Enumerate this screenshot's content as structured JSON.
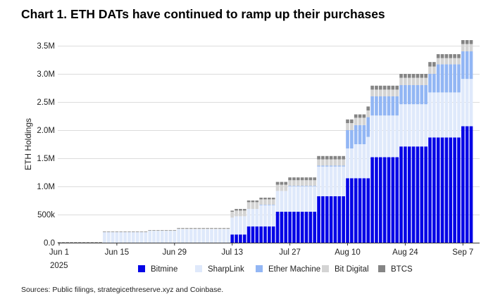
{
  "chart_data": {
    "type": "bar",
    "stacked": true,
    "title": "Chart 1. ETH DATs have continued to ramp up their purchases",
    "xlabel": "",
    "ylabel": "ETH Holdings",
    "ylim": [
      0,
      3600000
    ],
    "yticks": [
      {
        "value": 0,
        "label": "0.0"
      },
      {
        "value": 500000,
        "label": "500k"
      },
      {
        "value": 1000000,
        "label": "1.0M"
      },
      {
        "value": 1500000,
        "label": "1.5M"
      },
      {
        "value": 2000000,
        "label": "2.0M"
      },
      {
        "value": 2500000,
        "label": "2.5M"
      },
      {
        "value": 3000000,
        "label": "3.0M"
      },
      {
        "value": 3500000,
        "label": "3.5M"
      }
    ],
    "xticks": [
      {
        "date": "2025-06-01",
        "label": "Jun 1"
      },
      {
        "date": "2025-06-15",
        "label": "Jun 15"
      },
      {
        "date": "2025-06-29",
        "label": "Jun 29"
      },
      {
        "date": "2025-07-13",
        "label": "Jul 13"
      },
      {
        "date": "2025-07-27",
        "label": "Jul 27"
      },
      {
        "date": "2025-08-10",
        "label": "Aug 10"
      },
      {
        "date": "2025-08-24",
        "label": "Aug 24"
      },
      {
        "date": "2025-09-07",
        "label": "Sep 7"
      }
    ],
    "year_label": "2025",
    "x_range": [
      "2025-06-01",
      "2025-09-09"
    ],
    "frequency": "daily",
    "grid": true,
    "legend_position": "bottom",
    "series": [
      {
        "name": "Bitmine",
        "color": "#0505e6"
      },
      {
        "name": "SharpLink",
        "color": "#dfe9fb"
      },
      {
        "name": "Ether Machine",
        "color": "#92b6f4"
      },
      {
        "name": "Bit Digital",
        "color": "#d4d4d4"
      },
      {
        "name": "BTCS",
        "color": "#858585"
      }
    ],
    "value_unit": "million ETH",
    "steps_note": "holdings per series (millions), carried forward daily from each start date",
    "steps": [
      {
        "start": "2025-06-01",
        "values": [
          0,
          0,
          0,
          0.008,
          0.004
        ]
      },
      {
        "start": "2025-06-12",
        "values": [
          0,
          0.19,
          0,
          0.004,
          0.006
        ]
      },
      {
        "start": "2025-06-23",
        "values": [
          0,
          0.21,
          0,
          0.008,
          0.007
        ]
      },
      {
        "start": "2025-06-30",
        "values": [
          0,
          0.24,
          0,
          0.01,
          0.01
        ]
      },
      {
        "start": "2025-07-13",
        "values": [
          0.146,
          0.3,
          0,
          0.104,
          0.02
        ]
      },
      {
        "start": "2025-07-14",
        "values": [
          0.146,
          0.324,
          0,
          0.1,
          0.03
        ]
      },
      {
        "start": "2025-07-17",
        "values": [
          0.29,
          0.31,
          0,
          0.12,
          0.03
        ]
      },
      {
        "start": "2025-07-20",
        "values": [
          0.29,
          0.377,
          0.008,
          0.095,
          0.03
        ]
      },
      {
        "start": "2025-07-24",
        "values": [
          0.55,
          0.37,
          0,
          0.11,
          0.05
        ]
      },
      {
        "start": "2025-07-27",
        "values": [
          0.55,
          0.45,
          0.01,
          0.1,
          0.05
        ]
      },
      {
        "start": "2025-08-03",
        "values": [
          0.825,
          0.529,
          0.016,
          0.11,
          0.06
        ]
      },
      {
        "start": "2025-08-10",
        "values": [
          1.146,
          0.529,
          0.325,
          0.125,
          0.065
        ]
      },
      {
        "start": "2025-08-12",
        "values": [
          1.146,
          0.604,
          0.34,
          0.13,
          0.06
        ]
      },
      {
        "start": "2025-08-15",
        "values": [
          1.146,
          0.734,
          0.35,
          0.12,
          0.07
        ]
      },
      {
        "start": "2025-08-16",
        "values": [
          1.52,
          0.74,
          0.34,
          0.12,
          0.07
        ]
      },
      {
        "start": "2025-08-23",
        "values": [
          1.71,
          0.75,
          0.34,
          0.13,
          0.07
        ]
      },
      {
        "start": "2025-08-30",
        "values": [
          1.87,
          0.8,
          0.33,
          0.13,
          0.08
        ]
      },
      {
        "start": "2025-09-01",
        "values": [
          1.87,
          0.8,
          0.5,
          0.11,
          0.07
        ]
      },
      {
        "start": "2025-09-07",
        "values": [
          2.07,
          0.84,
          0.49,
          0.13,
          0.07
        ]
      }
    ]
  },
  "source": "Sources: Public filings, strategicethreserve.xyz and Coinbase."
}
